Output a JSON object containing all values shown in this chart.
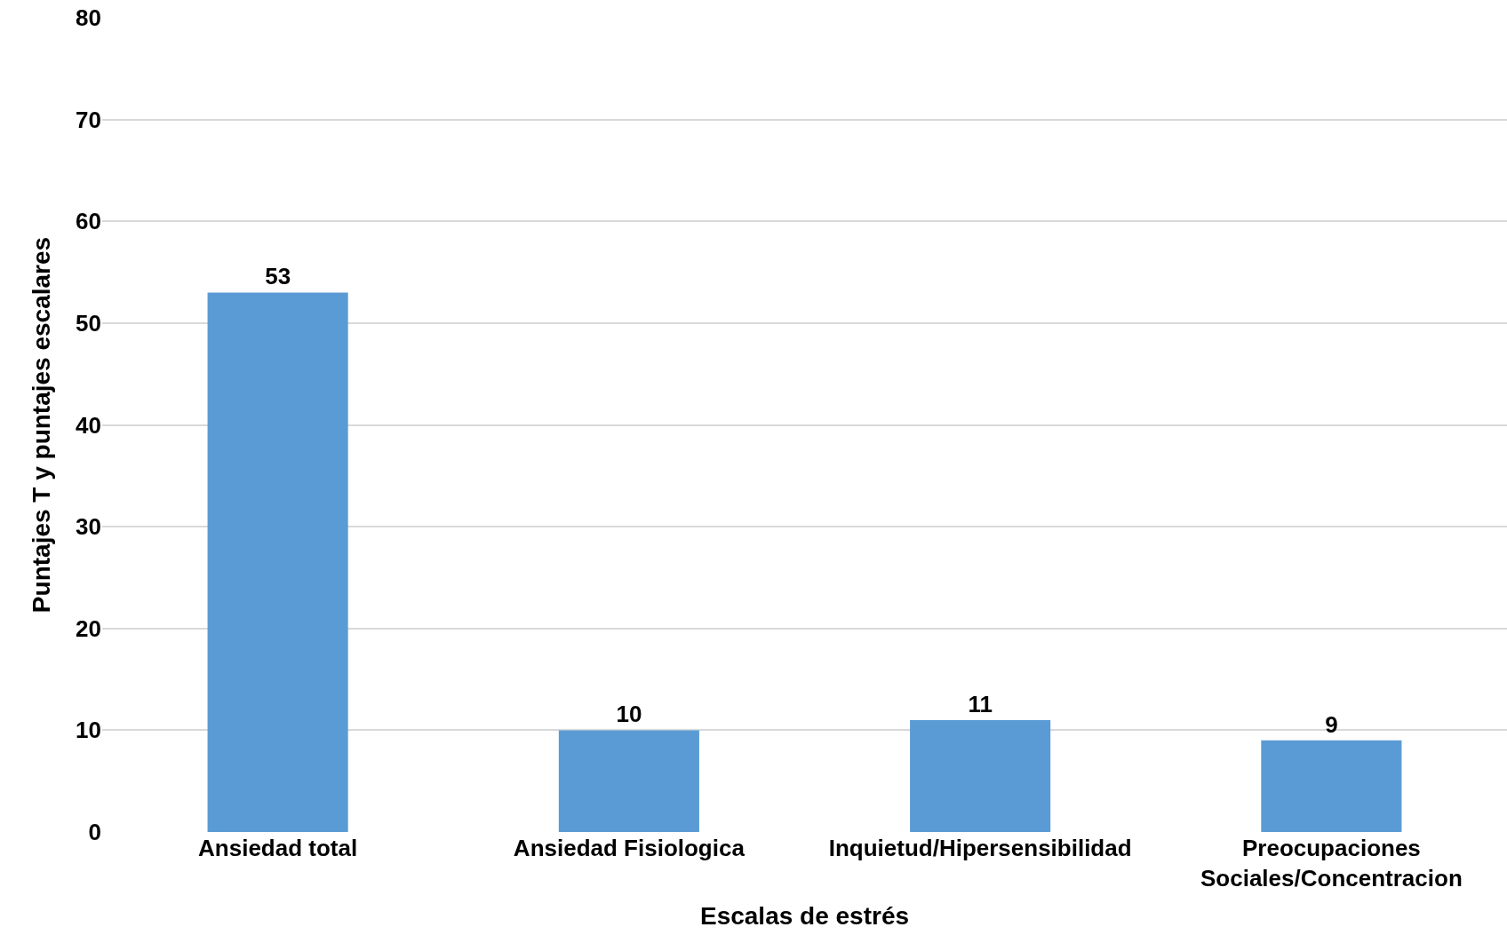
{
  "chart_data": {
    "type": "bar",
    "xlabel": "Escalas de estrés",
    "ylabel": "Puntajes T y puntajes escalares",
    "categories": [
      "Ansiedad total",
      "Ansiedad Fisiologica",
      "Inquietud/Hipersensibilidad",
      "Preocupaciones Sociales/Concentracion"
    ],
    "values": [
      53,
      10,
      11,
      9
    ],
    "color": "#5b9bd5",
    "ylim": [
      0,
      80
    ],
    "yticks": [
      0,
      10,
      20,
      30,
      40,
      50,
      60,
      70,
      80
    ],
    "grid": "y",
    "data_labels": true,
    "legend": false
  }
}
